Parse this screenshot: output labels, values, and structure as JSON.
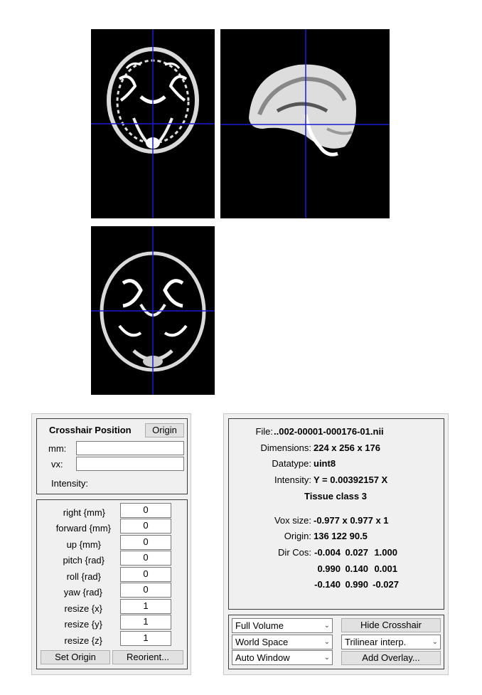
{
  "crosshair": {
    "title": "Crosshair Position",
    "origin_button": "Origin",
    "mm_label": "mm:",
    "vx_label": "vx:",
    "mm_value": "",
    "vx_value": "",
    "intensity_label": "Intensity:"
  },
  "params": [
    {
      "label": "right  {mm}",
      "value": "0"
    },
    {
      "label": "forward  {mm}",
      "value": "0"
    },
    {
      "label": "up  {mm}",
      "value": "0"
    },
    {
      "label": "pitch  {rad}",
      "value": "0"
    },
    {
      "label": "roll  {rad}",
      "value": "0"
    },
    {
      "label": "yaw  {rad}",
      "value": "0"
    },
    {
      "label": "resize  {x}",
      "value": "1"
    },
    {
      "label": "resize  {y}",
      "value": "1"
    },
    {
      "label": "resize  {z}",
      "value": "1"
    }
  ],
  "actions": {
    "set_origin": "Set Origin",
    "reorient": "Reorient..."
  },
  "info": {
    "file_label": "File:",
    "file_value": "..002-00001-000176-01.nii",
    "dimensions_label": "Dimensions:",
    "dimensions_value": "224 x 256 x 176",
    "datatype_label": "Datatype:",
    "datatype_value": "uint8",
    "intensity_label": "Intensity:",
    "intensity_value": "Y = 0.00392157 X",
    "tissue": "Tissue class 3",
    "voxsize_label": "Vox size:",
    "voxsize_value": "-0.977 x 0.977 x 1",
    "origin_label": "Origin:",
    "origin_value": "136 122 90.5",
    "dircos_label": "Dir Cos:",
    "dircos_rows": [
      [
        "-0.004",
        "0.027",
        "1.000"
      ],
      [
        "0.990",
        "0.140",
        "0.001"
      ],
      [
        "-0.140",
        "0.990",
        "-0.027"
      ]
    ]
  },
  "controls": {
    "volume_select": "Full Volume",
    "space_select": "World Space",
    "window_select": "Auto Window",
    "hide_crosshair": "Hide Crosshair",
    "interp_select": "Trilinear interp.",
    "add_overlay": "Add Overlay..."
  },
  "colors": {
    "crosshair": "#1a1ad0",
    "background": "#ffffff",
    "panel": "#f0f0f0"
  },
  "icons": {
    "select_arrow": "chevron-down-icon"
  }
}
